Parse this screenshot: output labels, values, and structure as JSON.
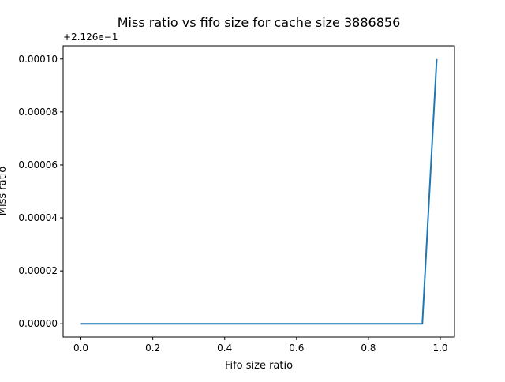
{
  "chart_data": {
    "type": "line",
    "title": "Miss ratio vs fifo size for cache size 3886856",
    "xlabel": "Fifo size ratio",
    "ylabel": "Miss ratio",
    "y_offset_label": "+2.126e−1",
    "xlim": [
      -0.0495,
      1.0395
    ],
    "ylim": [
      -5e-06,
      0.000105
    ],
    "x_ticks": [
      0.0,
      0.2,
      0.4,
      0.6,
      0.8,
      1.0
    ],
    "x_tick_labels": [
      "0.0",
      "0.2",
      "0.4",
      "0.6",
      "0.8",
      "1.0"
    ],
    "y_ticks": [
      0.0,
      2e-05,
      4e-05,
      6e-05,
      8e-05,
      0.0001
    ],
    "y_tick_labels": [
      "0.00000",
      "0.00002",
      "0.00004",
      "0.00006",
      "0.00008",
      "0.00010"
    ],
    "grid": false,
    "series": [
      {
        "color": "#1f77b4",
        "x": [
          0.0,
          0.05,
          0.1,
          0.15,
          0.2,
          0.25,
          0.3,
          0.35,
          0.4,
          0.45,
          0.5,
          0.55,
          0.6,
          0.65,
          0.7,
          0.75,
          0.8,
          0.85,
          0.9,
          0.95,
          0.99
        ],
        "y": [
          0.0,
          0.0,
          0.0,
          0.0,
          0.0,
          0.0,
          0.0,
          0.0,
          0.0,
          0.0,
          0.0,
          0.0,
          0.0,
          0.0,
          0.0,
          0.0,
          0.0,
          0.0,
          0.0,
          0.0,
          0.0001
        ]
      }
    ]
  }
}
